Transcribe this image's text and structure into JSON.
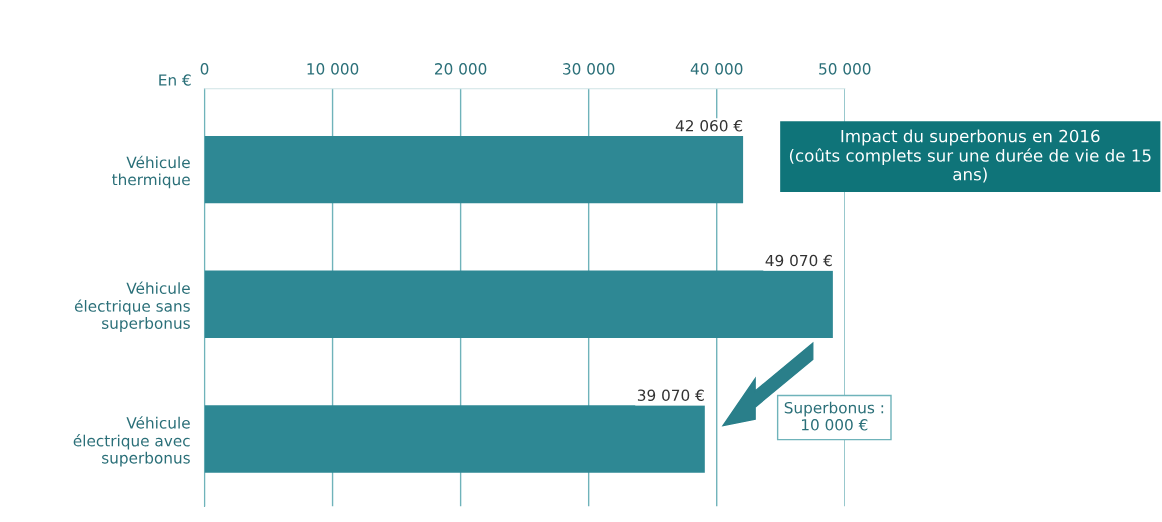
{
  "chart_data": {
    "type": "bar",
    "orientation": "horizontal",
    "title": "Impact du superbonus en 2016",
    "subtitle": "(coûts complets sur une durée de vie de 15 ans)",
    "xlabel": "En €",
    "categories": [
      "Véhicule\nthermique",
      "Véhicule\nélectrique sans\nsuperbonus",
      "Véhicule\nélectrique avec\nsuperbonus"
    ],
    "values": [
      42060,
      49070,
      39070
    ],
    "color": "#2e8894",
    "value_labels": [
      "42 060 €",
      "49 070 €",
      "39 070 €"
    ],
    "xlim": [
      0,
      50000
    ],
    "xticks": [
      0,
      {
        "value": 10000,
        "label": "10 000"
      },
      {
        "value": 20000,
        "label": "20 000"
      },
      {
        "value": 30000,
        "label": "30 000"
      },
      {
        "value": 40000,
        "label": "40 000"
      },
      {
        "value": 50000,
        "label": "50 000"
      }
    ],
    "grid": "x",
    "legend": false,
    "annotations": [
      "Superbonus :\n10 000 €"
    ]
  }
}
